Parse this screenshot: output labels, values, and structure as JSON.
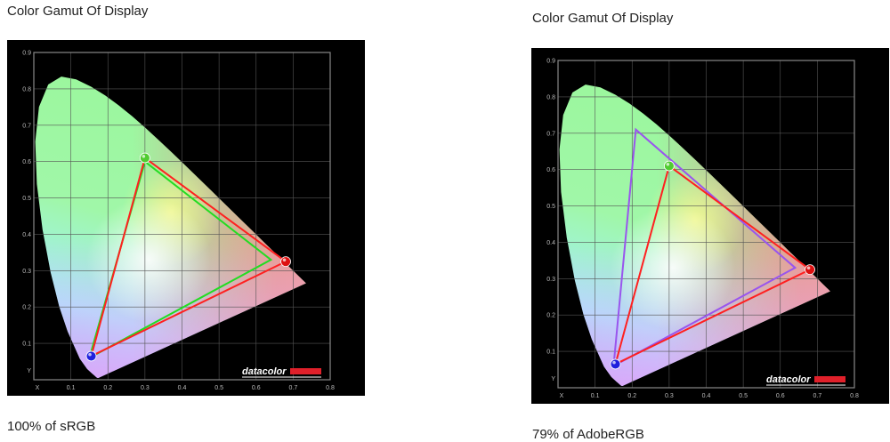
{
  "panels": [
    {
      "title": "Color Gamut Of Display",
      "caption": "100% of sRGB",
      "logo": "datacolor",
      "chart_data": {
        "type": "scatter",
        "title": "Color Gamut Of Display",
        "xlabel": "X",
        "ylabel": "Y",
        "xlim": [
          0,
          0.8
        ],
        "ylim": [
          0,
          0.9
        ],
        "x_ticks": [
          "X",
          "0.1",
          "0.2",
          "0.3",
          "0.4",
          "0.5",
          "0.6",
          "0.7",
          "0.8"
        ],
        "y_ticks": [
          "Y",
          "0.1",
          "0.2",
          "0.3",
          "0.4",
          "0.5",
          "0.6",
          "0.7",
          "0.8",
          "0.9"
        ],
        "grid": true,
        "measured_gamut": {
          "color": "#ff2020",
          "points": [
            [
              0.68,
              0.325
            ],
            [
              0.3,
              0.61
            ],
            [
              0.155,
              0.065
            ]
          ]
        },
        "reference_gamut": {
          "color": "#22dd22",
          "points": [
            [
              0.64,
              0.33
            ],
            [
              0.3,
              0.6
            ],
            [
              0.15,
              0.06
            ]
          ]
        },
        "result": "100% of sRGB"
      }
    },
    {
      "title": "Color Gamut Of Display",
      "caption": "79% of AdobeRGB",
      "logo": "datacolor",
      "chart_data": {
        "type": "scatter",
        "title": "Color Gamut Of Display",
        "xlabel": "X",
        "ylabel": "Y",
        "xlim": [
          0,
          0.8
        ],
        "ylim": [
          0,
          0.9
        ],
        "x_ticks": [
          "X",
          "0.1",
          "0.2",
          "0.3",
          "0.4",
          "0.5",
          "0.6",
          "0.7",
          "0.8"
        ],
        "y_ticks": [
          "Y",
          "0.1",
          "0.2",
          "0.3",
          "0.4",
          "0.5",
          "0.6",
          "0.7",
          "0.8",
          "0.9"
        ],
        "grid": true,
        "measured_gamut": {
          "color": "#ff2020",
          "points": [
            [
              0.68,
              0.325
            ],
            [
              0.3,
              0.61
            ],
            [
              0.155,
              0.065
            ]
          ]
        },
        "reference_gamut": {
          "color": "#9955ee",
          "points": [
            [
              0.64,
              0.33
            ],
            [
              0.21,
              0.71
            ],
            [
              0.15,
              0.06
            ]
          ]
        },
        "result": "79% of AdobeRGB"
      }
    }
  ]
}
